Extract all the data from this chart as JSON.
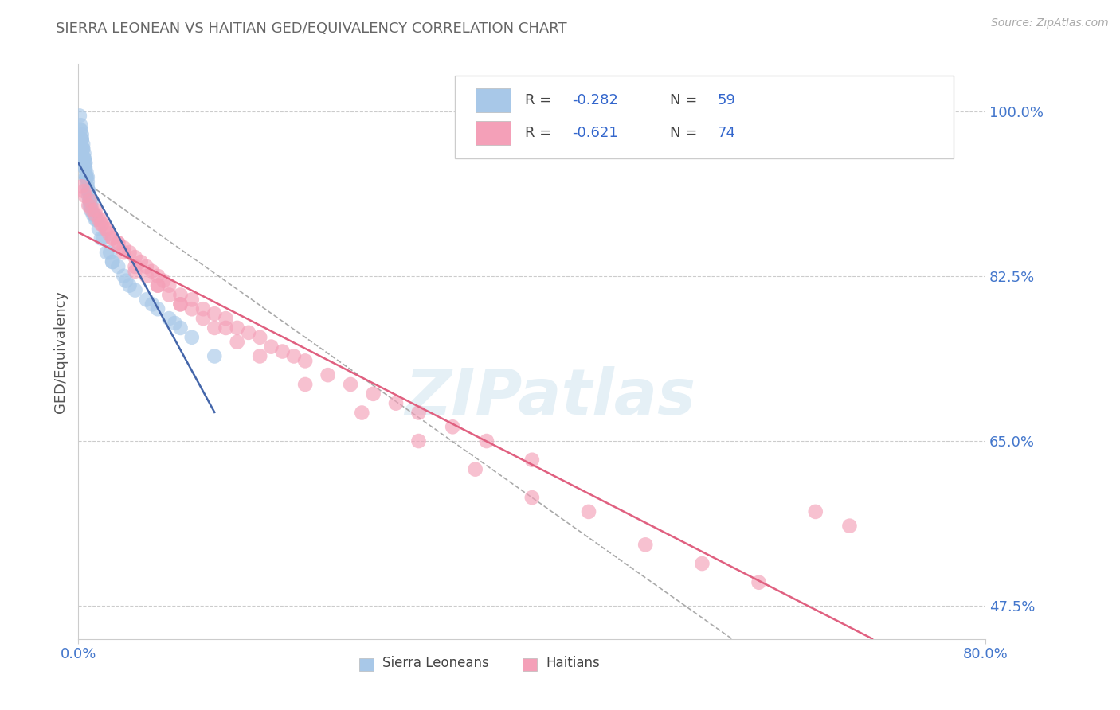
{
  "title": "SIERRA LEONEAN VS HAITIAN GED/EQUIVALENCY CORRELATION CHART",
  "source": "Source: ZipAtlas.com",
  "ylabel": "GED/Equivalency",
  "xlim": [
    0.0,
    80.0
  ],
  "ylim": [
    44.0,
    105.0
  ],
  "xticks": [
    0.0,
    80.0
  ],
  "xtick_labels": [
    "0.0%",
    "80.0%"
  ],
  "yticks": [
    47.5,
    65.0,
    82.5,
    100.0
  ],
  "ytick_labels": [
    "47.5%",
    "65.0%",
    "82.5%",
    "100.0%"
  ],
  "legend_r1_label": "R = ",
  "legend_r1_val": "-0.282",
  "legend_n1_label": "N = ",
  "legend_n1_val": "59",
  "legend_r2_label": "R = ",
  "legend_r2_val": "-0.621",
  "legend_n2_label": "N = ",
  "legend_n2_val": "74",
  "color_blue": "#a8c8e8",
  "color_blue_dark": "#5588cc",
  "color_pink": "#f4a0b8",
  "color_pink_dark": "#e06080",
  "color_blue_line": "#4466aa",
  "color_pink_line": "#e06080",
  "color_dashed": "#aaaaaa",
  "watermark": "ZIPatlas",
  "background_color": "#ffffff",
  "grid_color": "#cccccc",
  "title_color": "#666666",
  "axis_label_color": "#555555",
  "tick_label_color": "#4477cc",
  "sierra_legend": "Sierra Leoneans",
  "haiti_legend": "Haitians",
  "sierra_x": [
    0.1,
    0.2,
    0.3,
    0.4,
    0.5,
    0.6,
    0.7,
    0.8,
    0.9,
    1.0,
    0.2,
    0.3,
    0.4,
    0.5,
    0.6,
    0.7,
    0.8,
    0.9,
    1.0,
    1.1,
    0.3,
    0.5,
    0.7,
    0.9,
    1.1,
    1.3,
    1.5,
    1.8,
    2.0,
    2.5,
    3.0,
    3.5,
    4.0,
    5.0,
    6.0,
    7.0,
    8.0,
    9.0,
    10.0,
    12.0,
    0.4,
    0.6,
    0.8,
    1.2,
    1.6,
    2.2,
    3.0,
    4.5,
    6.5,
    8.5,
    0.15,
    0.25,
    0.35,
    0.45,
    0.55,
    0.65,
    1.4,
    2.8,
    4.2
  ],
  "sierra_y": [
    99.5,
    98.0,
    97.5,
    96.5,
    95.0,
    94.5,
    93.0,
    92.0,
    91.0,
    90.5,
    98.5,
    97.0,
    96.0,
    95.5,
    94.0,
    93.5,
    92.5,
    91.5,
    90.0,
    89.5,
    97.0,
    95.0,
    93.0,
    91.5,
    90.0,
    89.0,
    88.5,
    87.5,
    86.5,
    85.0,
    84.0,
    83.5,
    82.5,
    81.0,
    80.0,
    79.0,
    78.0,
    77.0,
    76.0,
    74.0,
    96.0,
    94.5,
    93.0,
    90.5,
    88.5,
    86.5,
    84.0,
    81.5,
    79.5,
    77.5,
    98.0,
    97.0,
    96.0,
    95.0,
    94.0,
    93.0,
    89.0,
    85.0,
    82.0
  ],
  "haiti_x": [
    0.3,
    0.6,
    0.9,
    1.2,
    1.5,
    1.8,
    2.1,
    2.4,
    2.7,
    3.0,
    3.5,
    4.0,
    4.5,
    5.0,
    5.5,
    6.0,
    6.5,
    7.0,
    7.5,
    8.0,
    9.0,
    10.0,
    11.0,
    12.0,
    13.0,
    14.0,
    15.0,
    16.0,
    17.0,
    18.0,
    19.0,
    20.0,
    22.0,
    24.0,
    26.0,
    28.0,
    30.0,
    33.0,
    36.0,
    40.0,
    0.5,
    1.0,
    1.5,
    2.0,
    2.5,
    3.0,
    4.0,
    5.0,
    6.0,
    7.0,
    8.0,
    9.0,
    10.0,
    12.0,
    14.0,
    16.0,
    20.0,
    25.0,
    30.0,
    35.0,
    40.0,
    45.0,
    50.0,
    55.0,
    60.0,
    65.0,
    68.0,
    2.0,
    3.5,
    5.0,
    7.0,
    9.0,
    11.0,
    13.0
  ],
  "haiti_y": [
    92.0,
    91.0,
    90.0,
    89.5,
    89.0,
    88.5,
    88.0,
    87.5,
    87.0,
    86.5,
    86.0,
    85.5,
    85.0,
    84.5,
    84.0,
    83.5,
    83.0,
    82.5,
    82.0,
    81.5,
    80.5,
    80.0,
    79.0,
    78.5,
    78.0,
    77.0,
    76.5,
    76.0,
    75.0,
    74.5,
    74.0,
    73.5,
    72.0,
    71.0,
    70.0,
    69.0,
    68.0,
    66.5,
    65.0,
    63.0,
    91.5,
    90.5,
    89.5,
    88.5,
    87.5,
    86.5,
    85.0,
    83.5,
    82.5,
    81.5,
    80.5,
    79.5,
    79.0,
    77.0,
    75.5,
    74.0,
    71.0,
    68.0,
    65.0,
    62.0,
    59.0,
    57.5,
    54.0,
    52.0,
    50.0,
    57.5,
    56.0,
    88.0,
    86.0,
    83.0,
    81.5,
    79.5,
    78.0,
    77.0
  ]
}
